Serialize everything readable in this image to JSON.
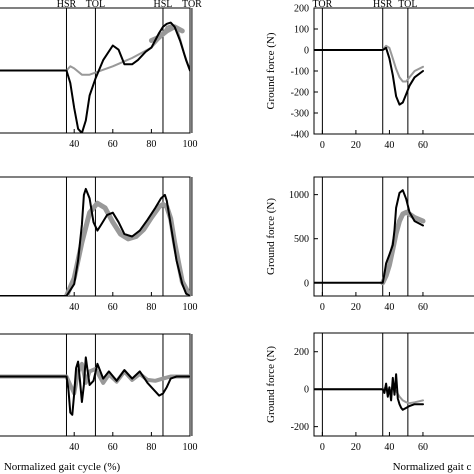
{
  "chart_data": [
    {
      "id": "left-top",
      "type": "line",
      "xlim": [
        0,
        100
      ],
      "ylim": [
        -1.5,
        1.5
      ],
      "xticks": [
        40,
        60,
        80,
        100
      ],
      "yticks": [],
      "events": [
        {
          "label": "HSR",
          "x": 36
        },
        {
          "label": "TOL",
          "x": 51
        },
        {
          "label": "HSL",
          "x": 86
        },
        {
          "label": "TOR",
          "x": 101
        }
      ],
      "event_lines": [
        36,
        51,
        86,
        101
      ],
      "series": [
        {
          "color": "#999999",
          "width": 2,
          "x": [
            0,
            36,
            38,
            40,
            44,
            48,
            51,
            60,
            70,
            80,
            85,
            88,
            91,
            94,
            97,
            100
          ],
          "y": [
            0,
            0,
            0.1,
            0.05,
            -0.1,
            -0.1,
            -0.05,
            0.1,
            0.3,
            0.55,
            0.8,
            1.05,
            1.1,
            0.9,
            0.4,
            0
          ]
        },
        {
          "color": "#999999",
          "width": 5,
          "x": [
            80,
            84,
            88,
            92,
            96
          ],
          "y": [
            0.72,
            0.8,
            0.95,
            1.05,
            0.95
          ]
        },
        {
          "color": "#000000",
          "width": 2,
          "x": [
            0,
            36,
            38,
            40,
            42,
            44,
            46,
            48,
            51,
            55,
            60,
            63,
            66,
            70,
            73,
            77,
            80,
            84,
            86,
            88,
            90,
            92,
            95,
            98,
            100
          ],
          "y": [
            0,
            0,
            -0.3,
            -0.9,
            -1.4,
            -1.5,
            -1.2,
            -0.6,
            -0.2,
            0.25,
            0.6,
            0.5,
            0.15,
            0.15,
            0.25,
            0.45,
            0.55,
            0.9,
            1.05,
            1.12,
            1.15,
            1.05,
            0.7,
            0.25,
            0
          ]
        }
      ]
    },
    {
      "id": "left-middle",
      "type": "line",
      "xlim": [
        0,
        100
      ],
      "ylim": [
        0,
        1.0
      ],
      "xticks": [
        40,
        60,
        80,
        100
      ],
      "yticks": [],
      "event_lines": [
        36,
        51,
        86,
        101
      ],
      "series": [
        {
          "color": "#999999",
          "width": 5,
          "x": [
            36,
            40,
            44,
            48,
            52,
            56,
            60,
            64,
            68,
            72,
            76,
            80,
            84,
            86,
            88,
            90,
            92,
            96,
            100
          ],
          "y": [
            0,
            0.15,
            0.45,
            0.7,
            0.78,
            0.74,
            0.62,
            0.52,
            0.48,
            0.5,
            0.56,
            0.66,
            0.75,
            0.77,
            0.75,
            0.65,
            0.45,
            0.12,
            0
          ]
        },
        {
          "color": "#000000",
          "width": 2,
          "x": [
            0,
            36,
            40,
            42,
            44,
            45,
            46,
            48,
            50,
            52,
            54,
            57,
            60,
            63,
            66,
            70,
            74,
            78,
            82,
            85,
            87,
            88,
            90,
            93,
            96,
            98,
            100
          ],
          "y": [
            0,
            0,
            0.1,
            0.3,
            0.6,
            0.85,
            0.9,
            0.82,
            0.62,
            0.55,
            0.6,
            0.68,
            0.7,
            0.62,
            0.52,
            0.5,
            0.55,
            0.64,
            0.74,
            0.82,
            0.85,
            0.8,
            0.6,
            0.3,
            0.1,
            0.02,
            0
          ]
        }
      ]
    },
    {
      "id": "left-bottom",
      "type": "line",
      "xlim": [
        0,
        100
      ],
      "ylim": [
        -1.4,
        1.0
      ],
      "xticks": [
        40,
        60,
        80,
        100
      ],
      "yticks": [],
      "event_lines": [
        36,
        51,
        86,
        101
      ],
      "xlabel": "Normalized gait cycle (%)",
      "series": [
        {
          "color": "#999999",
          "width": 4,
          "x": [
            0,
            36,
            38,
            40,
            42,
            44,
            46,
            48,
            51,
            55,
            58,
            62,
            66,
            70,
            74,
            78,
            82,
            86,
            90,
            93,
            96,
            100
          ],
          "y": [
            0,
            0,
            -0.2,
            -0.4,
            0.1,
            0.3,
            -0.15,
            0.12,
            0.18,
            -0.15,
            0.05,
            -0.12,
            0.12,
            -0.08,
            0.06,
            -0.08,
            -0.1,
            -0.05,
            0,
            0,
            0,
            0
          ]
        },
        {
          "color": "#000000",
          "width": 2,
          "x": [
            0,
            36,
            37,
            38,
            39,
            40,
            41,
            42,
            43,
            44,
            45,
            46,
            47,
            48,
            50,
            52,
            55,
            58,
            62,
            66,
            70,
            74,
            78,
            82,
            84,
            86,
            88,
            90,
            93,
            96,
            100
          ],
          "y": [
            0,
            0,
            -0.3,
            -0.85,
            -0.9,
            -0.4,
            0.2,
            0.35,
            -0.1,
            -0.6,
            -0.2,
            0.45,
            0.12,
            -0.2,
            -0.1,
            0.3,
            -0.05,
            0.12,
            -0.1,
            0.15,
            -0.05,
            0.12,
            -0.15,
            -0.35,
            -0.45,
            -0.4,
            -0.25,
            -0.05,
            0,
            0,
            0
          ]
        }
      ]
    },
    {
      "id": "right-top",
      "type": "line",
      "xlim": [
        -5,
        100
      ],
      "ylim": [
        -400,
        200
      ],
      "xticks": [
        0,
        20,
        40,
        60
      ],
      "yticks": [
        -400,
        -300,
        -200,
        -100,
        0,
        100,
        200
      ],
      "events": [
        {
          "label": "TOR",
          "x": 0
        },
        {
          "label": "HSR",
          "x": 36
        },
        {
          "label": "TOL",
          "x": 51
        }
      ],
      "event_lines": [
        0,
        36,
        51
      ],
      "ylabel": "Ground force (N)",
      "series": [
        {
          "color": "#999999",
          "width": 2,
          "x": [
            -5,
            36,
            38,
            40,
            42,
            44,
            46,
            48,
            50,
            52,
            55,
            60
          ],
          "y": [
            0,
            0,
            20,
            10,
            -40,
            -90,
            -130,
            -150,
            -150,
            -130,
            -100,
            -80
          ]
        },
        {
          "color": "#000000",
          "width": 2,
          "x": [
            -5,
            36,
            38,
            40,
            42,
            44,
            46,
            48,
            50,
            52,
            55,
            60
          ],
          "y": [
            0,
            0,
            10,
            -40,
            -120,
            -220,
            -260,
            -250,
            -210,
            -170,
            -130,
            -100
          ]
        }
      ]
    },
    {
      "id": "right-middle",
      "type": "line",
      "xlim": [
        -5,
        100
      ],
      "ylim": [
        -150,
        1200
      ],
      "xticks": [
        0,
        20,
        40,
        60
      ],
      "yticks": [
        0,
        500,
        1000
      ],
      "event_lines": [
        0,
        36,
        51
      ],
      "ylabel": "Ground force (N)",
      "series": [
        {
          "color": "#999999",
          "width": 5,
          "x": [
            36,
            38,
            40,
            42,
            44,
            46,
            48,
            50,
            52,
            55,
            60
          ],
          "y": [
            0,
            80,
            200,
            380,
            560,
            700,
            780,
            800,
            780,
            740,
            700
          ]
        },
        {
          "color": "#000000",
          "width": 2,
          "x": [
            -5,
            36,
            37,
            38,
            40,
            42,
            43,
            44,
            46,
            48,
            50,
            52,
            55,
            60
          ],
          "y": [
            0,
            0,
            100,
            220,
            320,
            430,
            600,
            850,
            1020,
            1050,
            950,
            800,
            700,
            650
          ]
        }
      ]
    },
    {
      "id": "right-bottom",
      "type": "line",
      "xlim": [
        -5,
        100
      ],
      "ylim": [
        -250,
        300
      ],
      "xticks": [
        0,
        20,
        40,
        60
      ],
      "yticks": [
        -200,
        0,
        200
      ],
      "event_lines": [
        0,
        36,
        51
      ],
      "ylabel": "Ground force (N)",
      "xlabel": "Normalized gait c",
      "series": [
        {
          "color": "#999999",
          "width": 2,
          "x": [
            -5,
            36,
            38,
            40,
            42,
            44,
            46,
            48,
            50,
            52,
            55,
            60
          ],
          "y": [
            0,
            0,
            10,
            -15,
            5,
            -10,
            -40,
            -60,
            -70,
            -75,
            -70,
            -60
          ]
        },
        {
          "color": "#000000",
          "width": 2,
          "x": [
            -5,
            36,
            37,
            38,
            39,
            40,
            41,
            42,
            43,
            44,
            45,
            46,
            47,
            48,
            50,
            52,
            55,
            60
          ],
          "y": [
            0,
            0,
            -20,
            30,
            -40,
            10,
            -60,
            60,
            -30,
            80,
            -50,
            -80,
            -100,
            -110,
            -100,
            -90,
            -80,
            -80
          ]
        }
      ]
    }
  ]
}
